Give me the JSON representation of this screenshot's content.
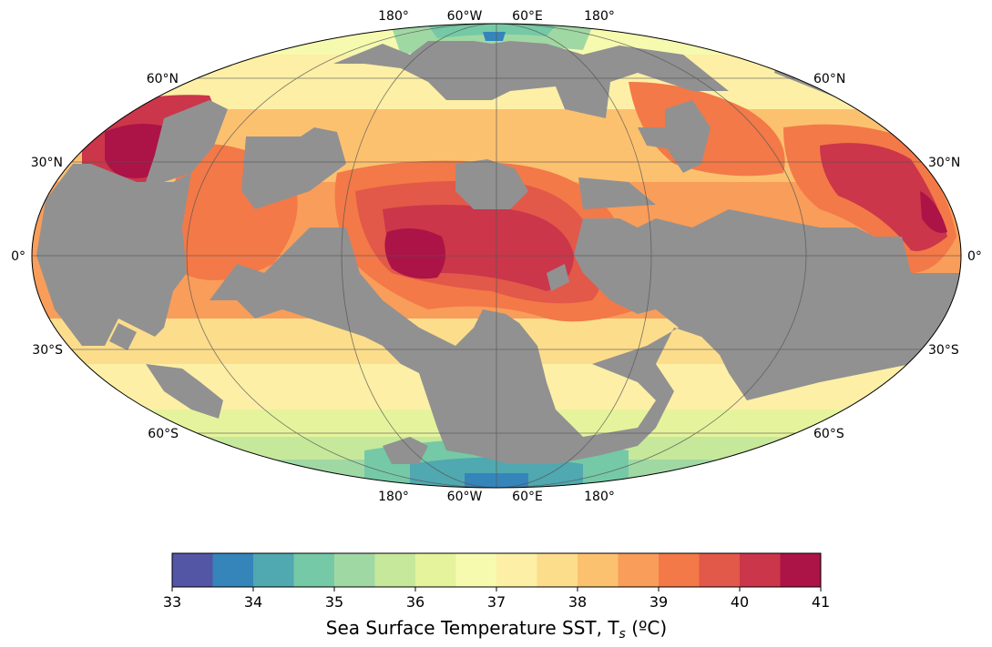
{
  "map": {
    "projection": "Mollweide",
    "land_color": "#919191",
    "graticule_color": "#555555",
    "lat_labels": {
      "n60": "60°N",
      "n30": "30°N",
      "eq": "0°",
      "s30": "30°S",
      "s60": "60°S"
    },
    "lon_labels": [
      "180°",
      "60°W",
      "60°E",
      "180°"
    ]
  },
  "colorbar": {
    "title_main": "Sea Surface Temperature SST, T",
    "title_sub": "s",
    "title_unit": " (ºC)",
    "ticks": [
      "33",
      "34",
      "35",
      "36",
      "37",
      "38",
      "39",
      "40",
      "41"
    ],
    "min": 33,
    "max": 41,
    "step": 0.5,
    "colors": [
      "#5355a5",
      "#3585bb",
      "#50a8b0",
      "#75c9a6",
      "#a0d8a4",
      "#c6e89b",
      "#e5f49c",
      "#f6faae",
      "#fdefa6",
      "#fcdd8b",
      "#fcc16f",
      "#f99d5a",
      "#f37948",
      "#e25849",
      "#cb364a",
      "#ac1347"
    ]
  }
}
